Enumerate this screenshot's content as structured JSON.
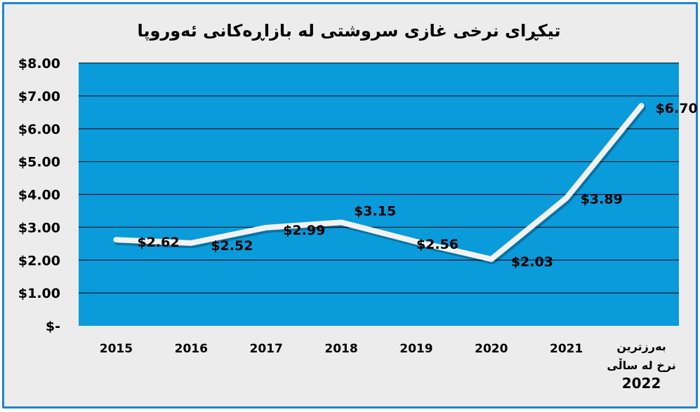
{
  "chart_data": {
    "type": "line",
    "title": "تیکڕای نرخی غازی سروشتی لە بازاڕەکانی ئەوروپا",
    "categories": [
      "2015",
      "2016",
      "2017",
      "2018",
      "2019",
      "2020",
      "2021",
      [
        "بەرزترین",
        "نرخ لە ساڵی",
        "2022"
      ]
    ],
    "values": [
      2.62,
      2.52,
      2.99,
      3.15,
      2.56,
      2.03,
      3.89,
      6.7
    ],
    "data_labels": [
      "$2.62",
      "$2.52",
      "$2.99",
      "$3.15",
      "$2.56",
      "$2.03",
      "$3.89",
      "$6.70"
    ],
    "yticks": [
      0,
      1,
      2,
      3,
      4,
      5,
      6,
      7,
      8
    ],
    "ytick_labels": [
      "$-",
      "$1.00",
      "$2.00",
      "$3.00",
      "$4.00",
      "$5.00",
      "$6.00",
      "$7.00",
      "$8.00"
    ],
    "ylim": [
      0,
      8
    ],
    "grid": true,
    "legend": "none",
    "colors": {
      "plot_background": "#0a9bdb",
      "gridline": "#0f1c33",
      "line": "#f2f2f2",
      "chart_background": "#ececec",
      "border": "#1a86d6"
    }
  }
}
